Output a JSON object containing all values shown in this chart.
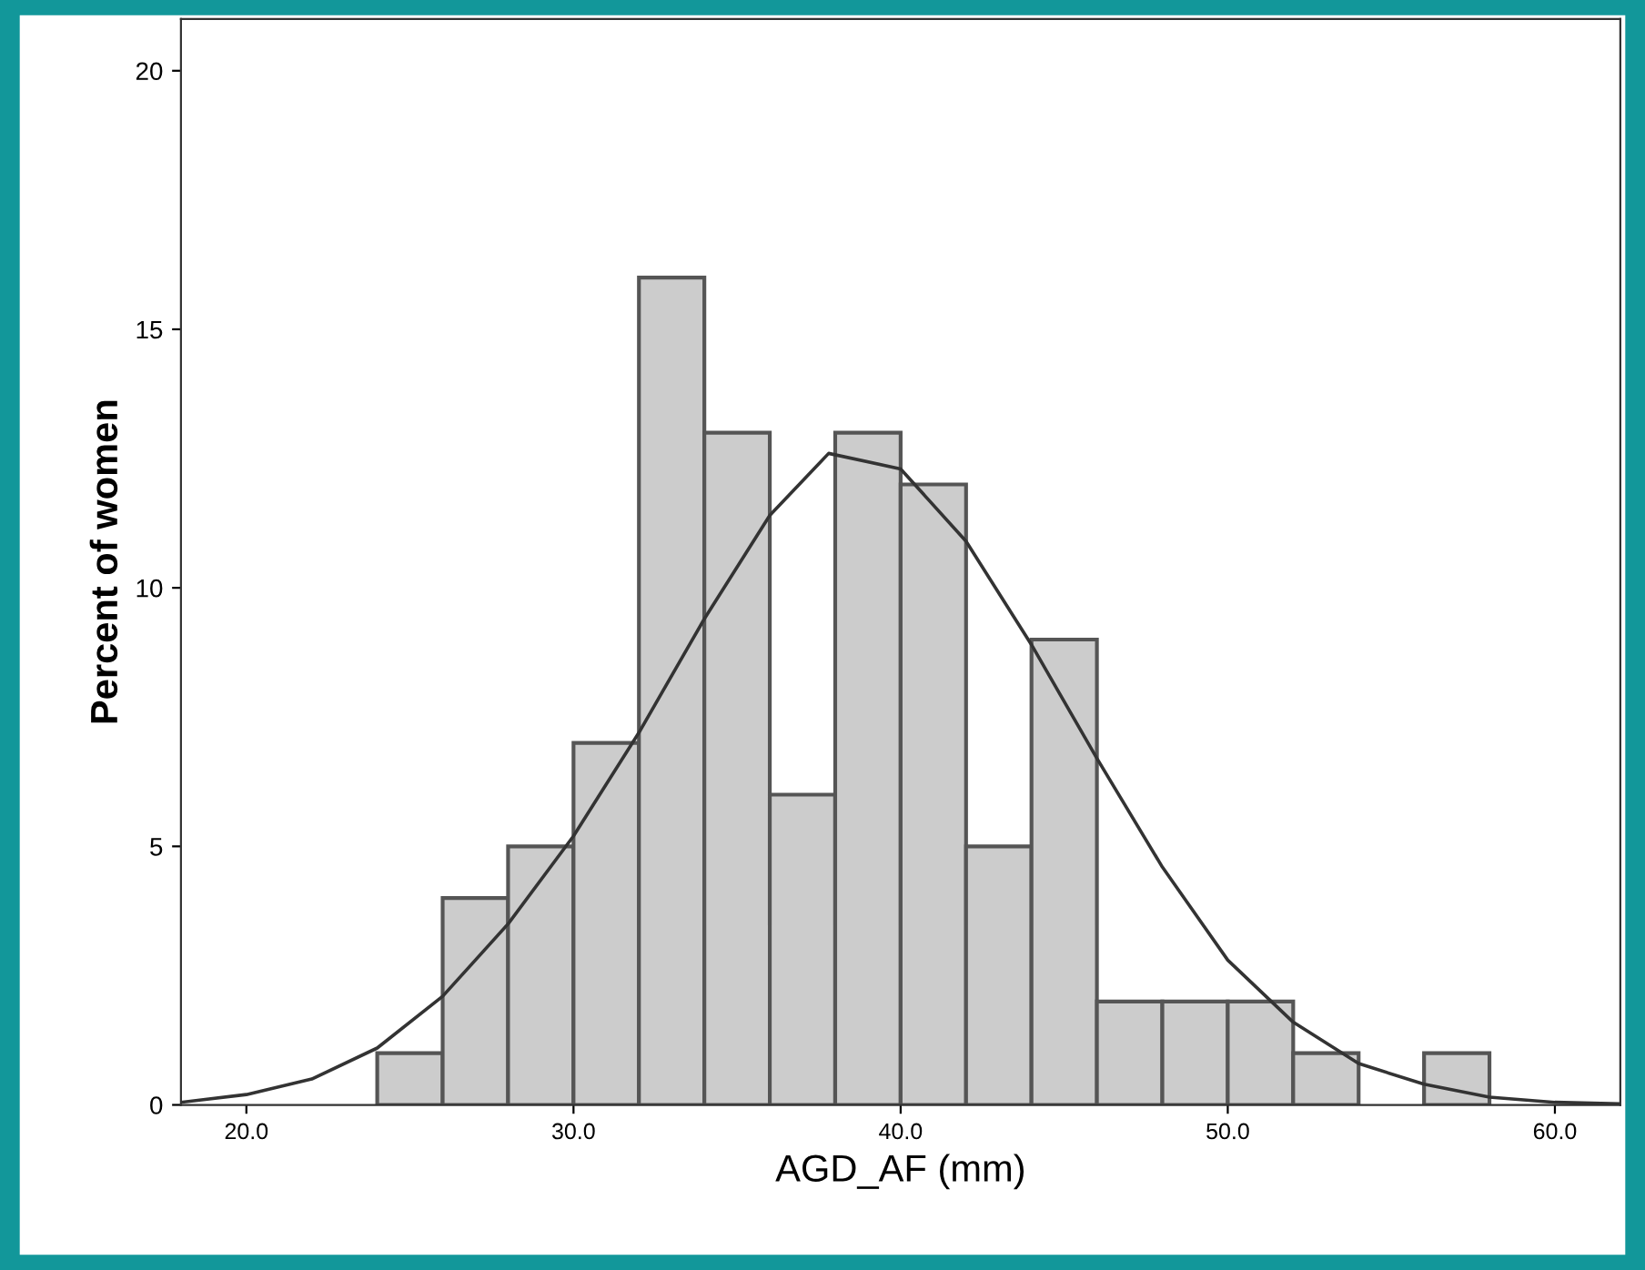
{
  "chart_data": {
    "type": "histogram",
    "xlabel": "AGD_AF (mm)",
    "ylabel": "Percent of women",
    "bins": [
      24,
      26,
      28,
      30,
      32,
      34,
      36,
      38,
      40,
      42,
      44,
      46,
      48,
      50,
      52,
      54,
      56,
      58
    ],
    "series": [
      {
        "color": "#cccccc",
        "values": [
          1,
          4,
          5,
          7,
          16,
          13,
          6,
          13,
          12,
          5,
          9,
          2,
          2,
          2,
          1,
          0,
          1
        ]
      },
      {
        "type": "line",
        "color": "#333333",
        "x": [
          18,
          20,
          22,
          24,
          26,
          28,
          30,
          32,
          34,
          36,
          37.8,
          40,
          42,
          44,
          46,
          48,
          50,
          52,
          54,
          56,
          58,
          60,
          62
        ],
        "values": [
          0.05,
          0.2,
          0.5,
          1.1,
          2.1,
          3.5,
          5.2,
          7.2,
          9.4,
          11.4,
          12.6,
          12.3,
          10.9,
          8.9,
          6.7,
          4.6,
          2.8,
          1.6,
          0.8,
          0.4,
          0.15,
          0.05,
          0.02
        ]
      }
    ],
    "xlim": [
      18,
      62
    ],
    "ylim": [
      0,
      21
    ],
    "xticks": [
      {
        "value": 20,
        "label": "20.0"
      },
      {
        "value": 30,
        "label": "30.0"
      },
      {
        "value": 40,
        "label": "40.0"
      },
      {
        "value": 50,
        "label": "50.0"
      },
      {
        "value": 60,
        "label": "60.0"
      }
    ],
    "yticks": [
      0,
      5,
      10,
      15,
      20
    ],
    "grid": false,
    "legend": false
  }
}
